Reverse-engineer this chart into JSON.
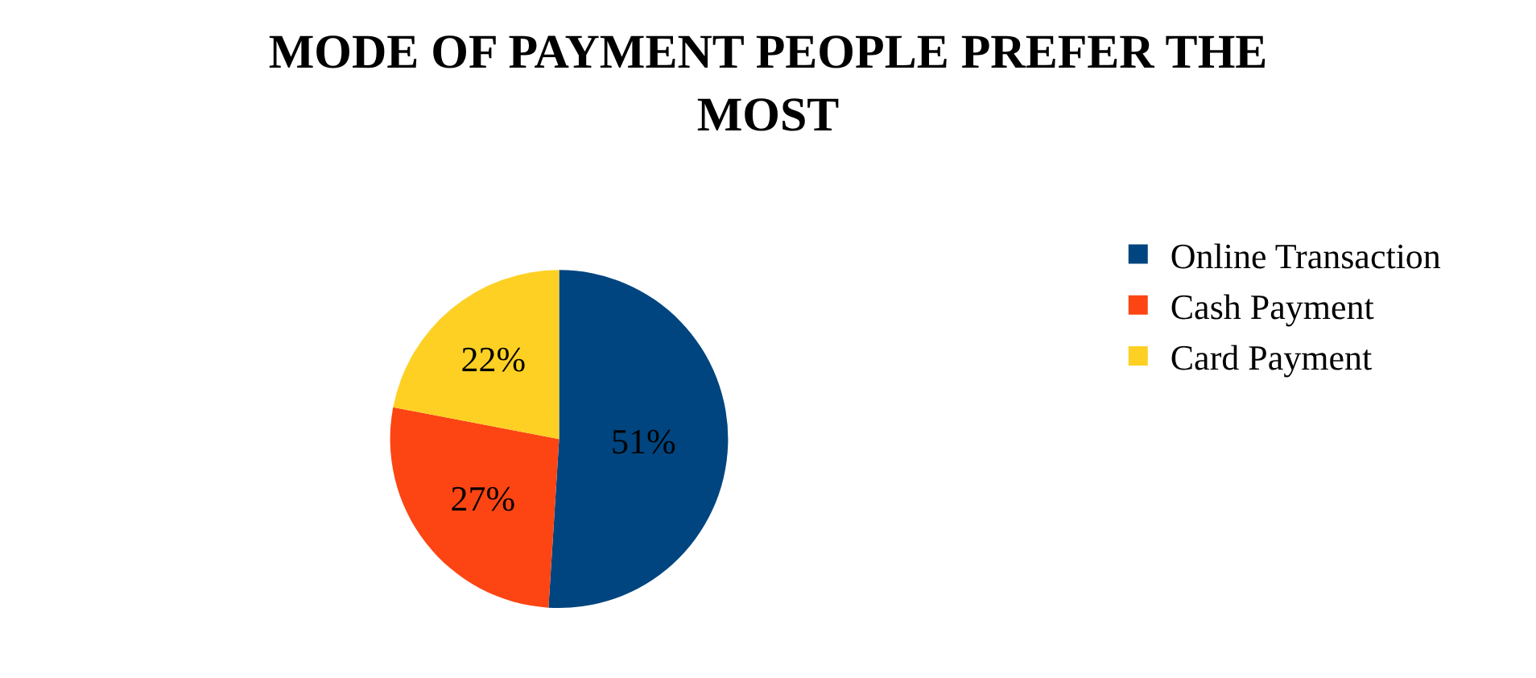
{
  "chart_data": {
    "type": "pie",
    "title": "MODE OF PAYMENT PEOPLE PREFER THE MOST",
    "categories": [
      "Online Transaction",
      "Cash Payment",
      "Card Payment"
    ],
    "values": [
      51,
      27,
      22
    ],
    "colors": [
      "#00457f",
      "#fc4513",
      "#fdd023"
    ],
    "value_labels": [
      "51%",
      "27%",
      "22%"
    ],
    "legend": "right"
  }
}
